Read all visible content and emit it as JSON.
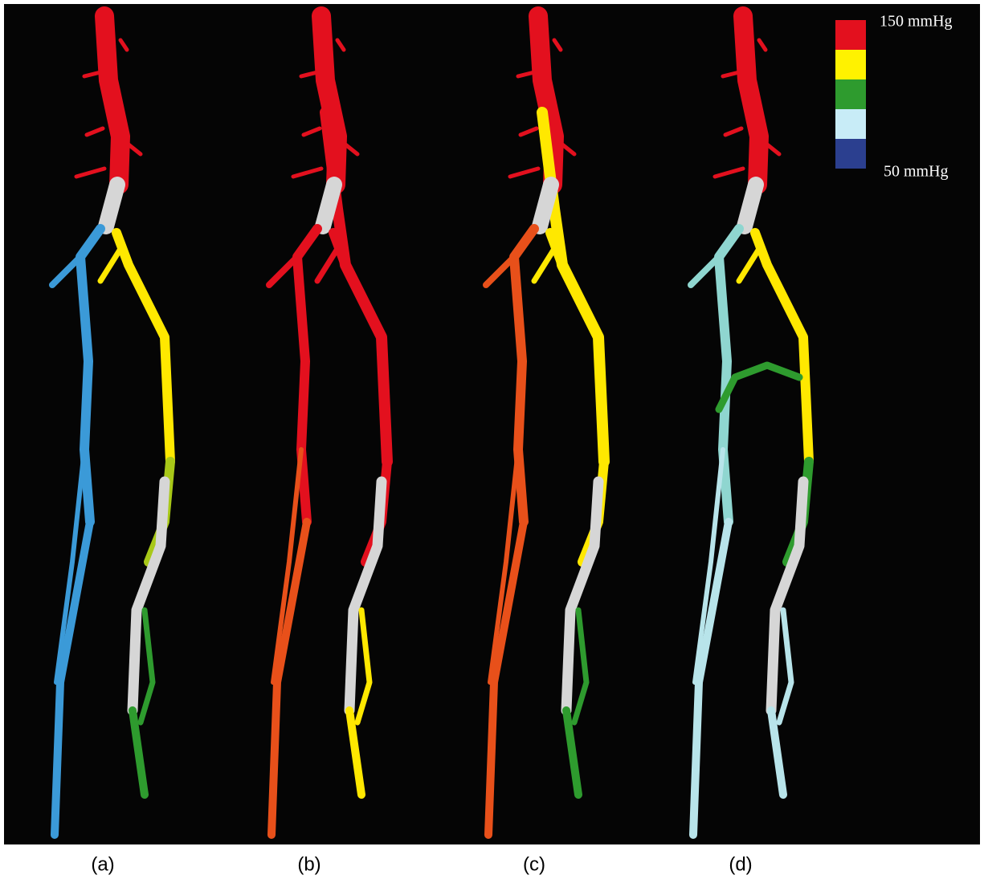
{
  "legend": {
    "max_label": "150 mmHg",
    "min_label": "50 mmHg",
    "colors": [
      "#e3101e",
      "#fff200",
      "#2e9b2e",
      "#c8ecf7",
      "#2b3f8f"
    ]
  },
  "panels": [
    {
      "label": "(a)"
    },
    {
      "label": "(b)"
    },
    {
      "label": "(c)"
    },
    {
      "label": "(d)"
    }
  ]
}
